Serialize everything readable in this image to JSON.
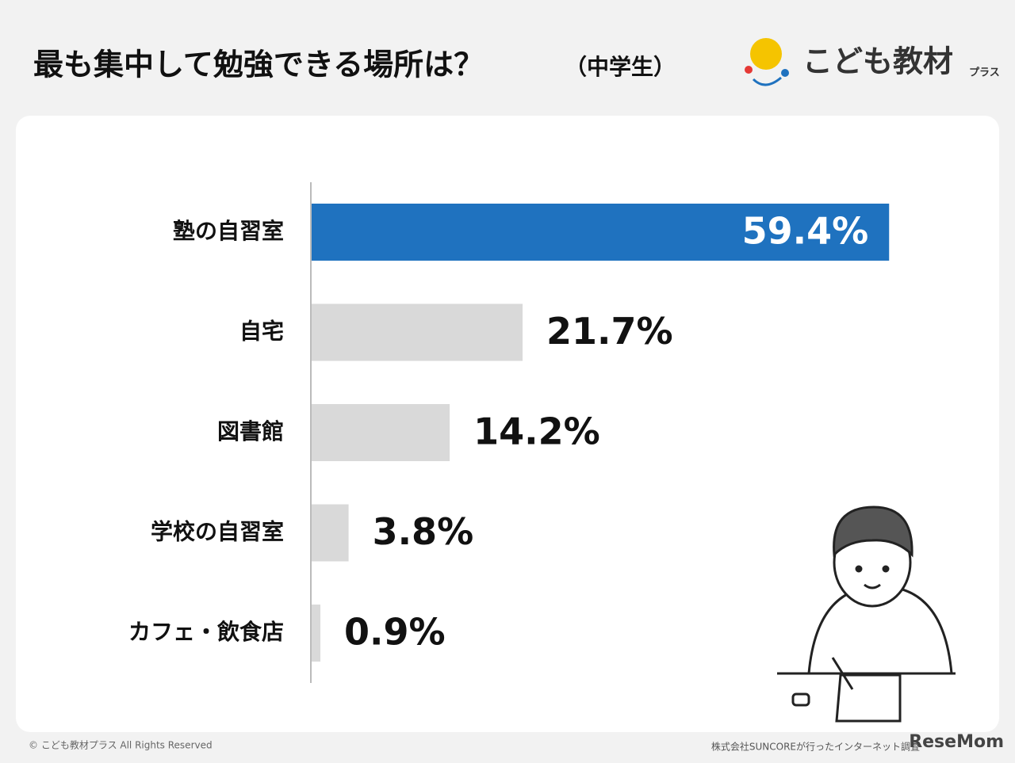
{
  "header": {
    "title": "最も集中して勉強できる場所は？",
    "subtitle": "（中学生）",
    "logo": "こども教材",
    "logo_sub": "プラス"
  },
  "chart_data": {
    "type": "bar",
    "orientation": "horizontal",
    "categories": [
      "塾の自習室",
      "自宅",
      "図書館",
      "学校の自習室",
      "カフェ・飲食店"
    ],
    "values": [
      59.4,
      21.7,
      14.2,
      3.8,
      0.9
    ],
    "value_labels": [
      "59.4%",
      "21.7%",
      "14.2%",
      "3.8%",
      "0.9%"
    ],
    "colors": [
      "#1f72bf",
      "#d9d9d9",
      "#d9d9d9",
      "#d9d9d9",
      "#d9d9d9"
    ]
  },
  "footer": {
    "copyright": "© こども教材プラス All Rights Reserved",
    "source": "株式会社SUNCOREが行ったインターネット調査",
    "watermark": "ReseMom"
  }
}
